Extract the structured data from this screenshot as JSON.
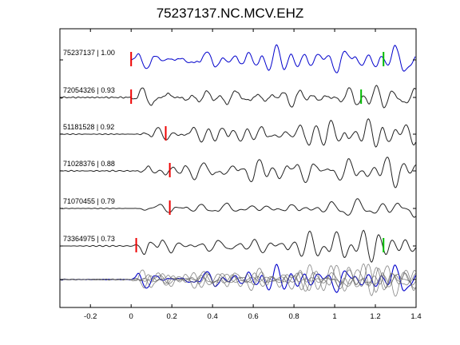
{
  "chart_data": {
    "type": "line",
    "title": "75237137.NC.MCV.EHZ",
    "xlabel": "",
    "ylabel": "",
    "xlim": [
      -0.35,
      1.4
    ],
    "xticks": [
      -0.2,
      0,
      0.2,
      0.4,
      0.6,
      0.8,
      1,
      1.2,
      1.4
    ],
    "xtick_labels": [
      "-0.2",
      "0",
      "0.2",
      "0.4",
      "0.6",
      "0.8",
      "1",
      "1.2",
      "1.4"
    ],
    "yticks": "right-side tick at each trace baseline",
    "grid": false,
    "colors": {
      "reference_trace": "#0000cc",
      "other_traces": "#222222",
      "stack_overlay": "#666666",
      "pick_red": "#ee0000",
      "pick_green": "#00bb00",
      "axes": "#000000"
    },
    "traces": [
      {
        "id": "75237137",
        "corr": "1.00",
        "label": "75237137 | 1.00",
        "color": "blue",
        "red_pick": 0.0,
        "green_pick": 1.24,
        "amplitude": 1.0
      },
      {
        "id": "72054326",
        "corr": "0.93",
        "label": "72054326 | 0.93",
        "color": "black",
        "red_pick": 0.0,
        "green_pick": 1.13,
        "amplitude": 1.0
      },
      {
        "id": "51181528",
        "corr": "0.92",
        "label": "51181528 | 0.92",
        "color": "black",
        "red_pick": 0.17,
        "green_pick": null,
        "amplitude": 1.0
      },
      {
        "id": "71028376",
        "corr": "0.88",
        "label": "71028376 | 0.88",
        "color": "black",
        "red_pick": 0.19,
        "green_pick": null,
        "amplitude": 1.0
      },
      {
        "id": "71070455",
        "corr": "0.79",
        "label": "71070455 | 0.79",
        "color": "black",
        "red_pick": 0.19,
        "green_pick": null,
        "amplitude": 0.6
      },
      {
        "id": "73364975",
        "corr": "0.73",
        "label": "73364975 | 0.73",
        "color": "black",
        "red_pick": 0.025,
        "green_pick": 1.24,
        "amplitude": 1.0
      }
    ],
    "stack": {
      "description": "overlay of all traces at bottom",
      "onset": 0.0
    }
  }
}
